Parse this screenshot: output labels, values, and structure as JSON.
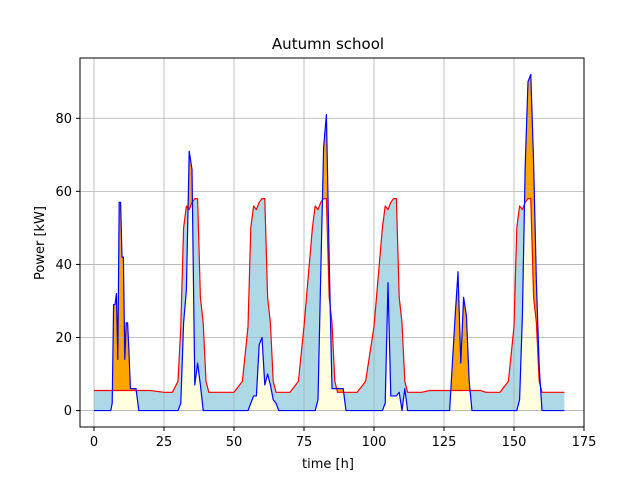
{
  "chart_data": {
    "type": "area",
    "title": "Autumn school",
    "xlabel": "time [h]",
    "ylabel": "Power [kW]",
    "xlim": [
      -5,
      175
    ],
    "ylim": [
      -4.5,
      96.5
    ],
    "xticks": [
      0,
      25,
      50,
      75,
      100,
      125,
      150,
      175
    ],
    "yticks": [
      0,
      20,
      40,
      60,
      80
    ],
    "grid": true,
    "colors": {
      "load_line": "#0000ff",
      "generation_line": "#ff0000",
      "self_consumed_fill": "#ffffe0",
      "surplus_fill": "#add8e6",
      "deficit_fill": "#ffa500",
      "grid": "#b0b0b0"
    },
    "series": [
      {
        "name": "",
        "role": "load",
        "color": "#0000ff",
        "x": [
          0,
          6,
          6.5,
          7,
          7.5,
          8,
          8.5,
          9,
          9.5,
          10,
          10.5,
          11,
          11.5,
          12,
          12.5,
          13,
          14,
          15,
          16,
          17,
          30,
          31,
          32,
          33,
          34,
          35,
          36,
          37,
          38,
          39,
          40,
          41,
          42,
          43,
          55,
          56,
          57,
          58,
          59,
          60,
          61,
          62,
          63,
          64,
          65,
          66,
          67,
          79,
          80,
          81,
          82,
          83,
          84,
          85,
          86,
          87,
          88,
          89,
          90,
          91,
          103,
          104,
          105,
          106,
          107,
          108,
          109,
          110,
          111,
          112,
          113,
          127,
          128,
          129,
          130,
          131,
          132,
          133,
          134,
          135,
          136,
          137,
          151,
          152,
          153,
          154,
          155,
          156,
          157,
          158,
          159,
          160,
          161,
          168
        ],
        "y": [
          0,
          0,
          2,
          29,
          29,
          32,
          14,
          57,
          57,
          42,
          42,
          14,
          24,
          24,
          16,
          6,
          6,
          6,
          0,
          0,
          0,
          2,
          24,
          33,
          71,
          66,
          7,
          13,
          7,
          0,
          0,
          0,
          0,
          0,
          0,
          2,
          4,
          4,
          18,
          20,
          7,
          10,
          7,
          3,
          2,
          0,
          0,
          0,
          3,
          38,
          72,
          81,
          41,
          6,
          6,
          6,
          6,
          6,
          0,
          0,
          0,
          2,
          35,
          4,
          4,
          4,
          5,
          0,
          6,
          0,
          0,
          0,
          13,
          26,
          38,
          13,
          31,
          26,
          8,
          0,
          0,
          0,
          0,
          3,
          26,
          67,
          90,
          92,
          68,
          35,
          12,
          0,
          0,
          0
        ]
      },
      {
        "name": "",
        "role": "generation",
        "color": "#ff0000",
        "x": [
          0,
          5,
          10,
          15,
          20,
          25,
          28,
          30,
          31,
          32,
          33,
          34,
          35,
          36,
          37,
          38,
          39,
          40,
          41,
          45,
          48,
          50,
          53,
          55,
          56,
          57,
          58,
          59,
          60,
          61,
          62,
          63,
          64,
          65,
          66,
          67,
          70,
          73,
          75,
          78,
          79,
          80,
          81,
          82,
          83,
          84,
          85,
          86,
          87,
          88,
          89,
          90,
          91,
          94,
          97,
          100,
          103,
          104,
          105,
          106,
          107,
          108,
          109,
          110,
          111,
          112,
          113,
          114,
          117,
          120,
          123,
          125,
          128,
          130,
          132,
          135,
          138,
          140,
          145,
          148,
          150,
          151,
          152,
          153,
          154,
          155,
          156,
          157,
          158,
          159,
          160,
          161,
          162,
          165,
          168
        ],
        "y": [
          5.5,
          5.5,
          5.5,
          5.5,
          5.5,
          5,
          5,
          8,
          23,
          50,
          56,
          55,
          57,
          58,
          58,
          31,
          24,
          8,
          5,
          5,
          5,
          5,
          8,
          23,
          50,
          56,
          55,
          57,
          58,
          58,
          31,
          24,
          8,
          5,
          5,
          5,
          5,
          8,
          23,
          50,
          56,
          55,
          57,
          58,
          58,
          31,
          24,
          8,
          5,
          5,
          5,
          5,
          5,
          5,
          8,
          23,
          50,
          56,
          55,
          57,
          58,
          58,
          31,
          24,
          8,
          5,
          5,
          5,
          5,
          5.5,
          5.5,
          5.5,
          5.5,
          5.5,
          5.5,
          5.5,
          5.5,
          5,
          5,
          8,
          23,
          50,
          56,
          55,
          57,
          58,
          58,
          31,
          24,
          8,
          5,
          5,
          5,
          5,
          5
        ]
      }
    ]
  }
}
